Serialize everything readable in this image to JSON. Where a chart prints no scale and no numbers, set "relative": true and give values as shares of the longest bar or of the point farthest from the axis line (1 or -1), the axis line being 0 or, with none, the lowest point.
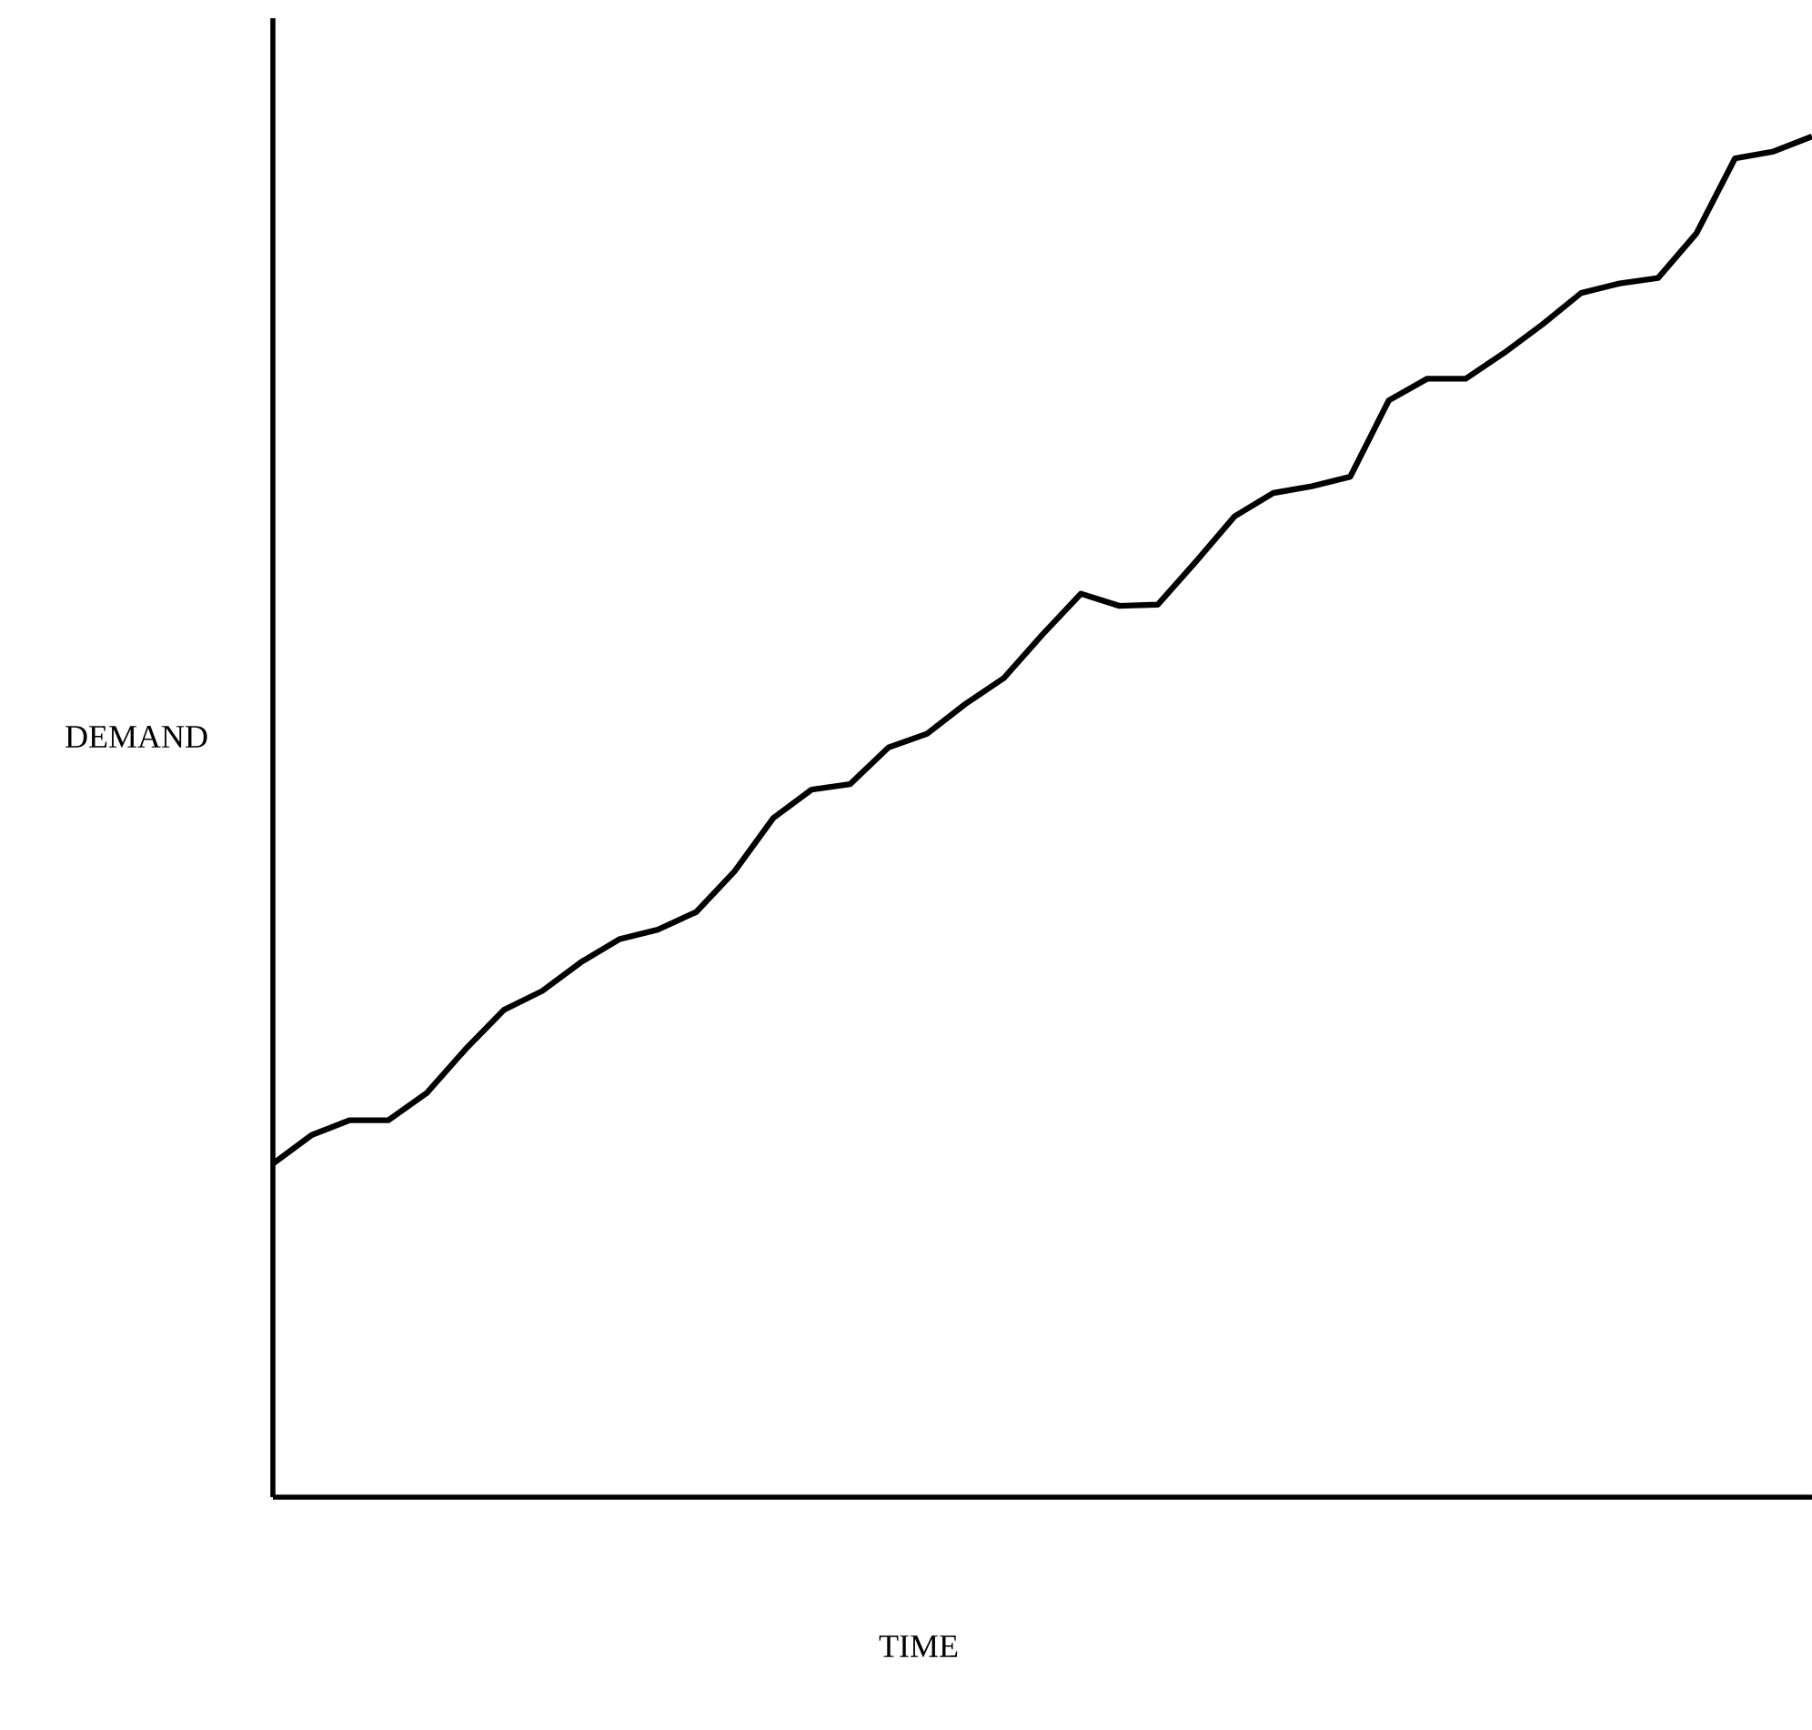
{
  "chart_data": {
    "type": "line",
    "xlabel": "TIME",
    "ylabel": "DEMAND",
    "relative": true,
    "color": "#000000",
    "categories": [
      null,
      null,
      null,
      null,
      null,
      null,
      null,
      null,
      null,
      null,
      null,
      null,
      null,
      null,
      null,
      null,
      null,
      null,
      null,
      null,
      null,
      null,
      null,
      null,
      null,
      null,
      null,
      null,
      null,
      null,
      null,
      null,
      null,
      null,
      null,
      null,
      null,
      null,
      null,
      null,
      null
    ],
    "values": [
      0.245,
      0.266,
      0.277,
      0.277,
      0.297,
      0.329,
      0.358,
      0.372,
      0.393,
      0.41,
      0.417,
      0.43,
      0.46,
      0.499,
      0.52,
      0.524,
      0.551,
      0.561,
      0.583,
      0.602,
      0.634,
      0.664,
      0.655,
      0.656,
      0.688,
      0.721,
      0.738,
      0.743,
      0.75,
      0.806,
      0.822,
      0.822,
      0.841,
      0.862,
      0.885,
      0.892,
      0.896,
      0.929,
      0.984,
      0.989,
      1.0
    ]
  }
}
